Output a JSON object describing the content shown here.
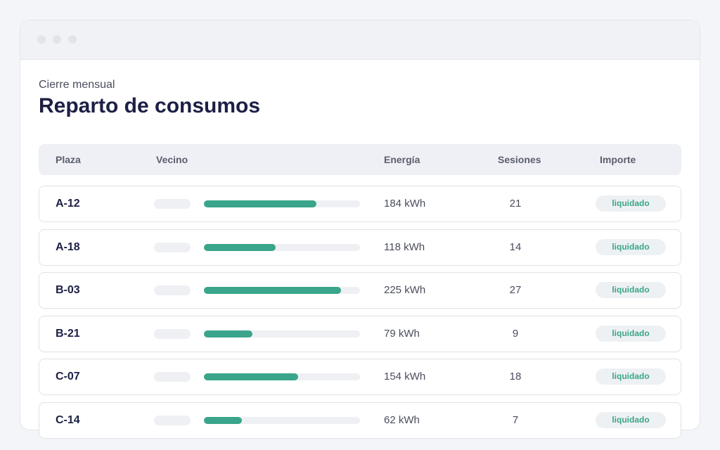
{
  "header": {
    "subtitle": "Cierre mensual",
    "title": "Reparto de consumos"
  },
  "table": {
    "columns": [
      "Plaza",
      "Vecino",
      "Energía",
      "Sesiones",
      "Importe"
    ],
    "rows": [
      {
        "plaza": "A-12",
        "energy": 184,
        "energy_label": "184 kWh",
        "sessions": 21,
        "status": "liquidado"
      },
      {
        "plaza": "A-18",
        "energy": 118,
        "energy_label": "118 kWh",
        "sessions": 14,
        "status": "liquidado"
      },
      {
        "plaza": "B-03",
        "energy": 225,
        "energy_label": "225 kWh",
        "sessions": 27,
        "status": "liquidado"
      },
      {
        "plaza": "B-21",
        "energy": 79,
        "energy_label": "79 kWh",
        "sessions": 9,
        "status": "liquidado"
      },
      {
        "plaza": "C-07",
        "energy": 154,
        "energy_label": "154 kWh",
        "sessions": 18,
        "status": "liquidado"
      },
      {
        "plaza": "C-14",
        "energy": 62,
        "energy_label": "62 kWh",
        "sessions": 7,
        "status": "liquidado"
      }
    ]
  }
}
